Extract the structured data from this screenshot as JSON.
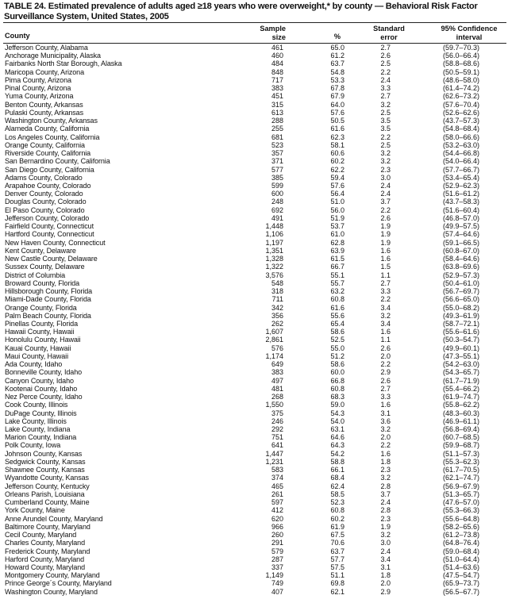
{
  "title": "TABLE 24. Estimated prevalence of adults aged ≥18 years who were overweight,* by county — Behavioral Risk Factor Surveillance System, United States, 2005",
  "headers": {
    "county": "County",
    "sample_size_line1": "Sample",
    "sample_size_line2": "size",
    "percent": "%",
    "se_line1": "Standard",
    "se_line2": "error",
    "ci_line1": "95% Confidence",
    "ci_line2": "interval"
  },
  "rows": [
    [
      "Jefferson County, Alabama",
      "461",
      "65.0",
      "2.7",
      "(59.7–70.3)"
    ],
    [
      "Anchorage Municipality, Alaska",
      "460",
      "61.2",
      "2.6",
      "(56.0–66.4)"
    ],
    [
      "Fairbanks North Star Borough, Alaska",
      "484",
      "63.7",
      "2.5",
      "(58.8–68.6)"
    ],
    [
      "Maricopa County, Arizona",
      "848",
      "54.8",
      "2.2",
      "(50.5–59.1)"
    ],
    [
      "Pima County, Arizona",
      "717",
      "53.3",
      "2.4",
      "(48.6–58.0)"
    ],
    [
      "Pinal County, Arizona",
      "383",
      "67.8",
      "3.3",
      "(61.4–74.2)"
    ],
    [
      "Yuma County, Arizona",
      "451",
      "67.9",
      "2.7",
      "(62.6–73.2)"
    ],
    [
      "Benton County, Arkansas",
      "315",
      "64.0",
      "3.2",
      "(57.6–70.4)"
    ],
    [
      "Pulaski County, Arkansas",
      "613",
      "57.6",
      "2.5",
      "(52.6–62.6)"
    ],
    [
      "Washington County, Arkansas",
      "288",
      "50.5",
      "3.5",
      "(43.7–57.3)"
    ],
    [
      "Alameda County, California",
      "255",
      "61.6",
      "3.5",
      "(54.8–68.4)"
    ],
    [
      "Los Angeles County, California",
      "681",
      "62.3",
      "2.2",
      "(58.0–66.6)"
    ],
    [
      "Orange County, California",
      "523",
      "58.1",
      "2.5",
      "(53.2–63.0)"
    ],
    [
      "Riverside County, California",
      "357",
      "60.6",
      "3.2",
      "(54.4–66.8)"
    ],
    [
      "San Bernardino County, California",
      "371",
      "60.2",
      "3.2",
      "(54.0–66.4)"
    ],
    [
      "San Diego County, California",
      "577",
      "62.2",
      "2.3",
      "(57.7–66.7)"
    ],
    [
      "Adams County, Colorado",
      "385",
      "59.4",
      "3.0",
      "(53.4–65.4)"
    ],
    [
      "Arapahoe County, Colorado",
      "599",
      "57.6",
      "2.4",
      "(52.9–62.3)"
    ],
    [
      "Denver County, Colorado",
      "600",
      "56.4",
      "2.4",
      "(51.6–61.2)"
    ],
    [
      "Douglas County, Colorado",
      "248",
      "51.0",
      "3.7",
      "(43.7–58.3)"
    ],
    [
      "El Paso County, Colorado",
      "692",
      "56.0",
      "2.2",
      "(51.6–60.4)"
    ],
    [
      "Jefferson County, Colorado",
      "491",
      "51.9",
      "2.6",
      "(46.8–57.0)"
    ],
    [
      "Fairfield County, Connecticut",
      "1,448",
      "53.7",
      "1.9",
      "(49.9–57.5)"
    ],
    [
      "Hartford County, Connecticut",
      "1,106",
      "61.0",
      "1.9",
      "(57.4–64.6)"
    ],
    [
      "New Haven County, Connecticut",
      "1,197",
      "62.8",
      "1.9",
      "(59.1–66.5)"
    ],
    [
      "Kent County, Delaware",
      "1,351",
      "63.9",
      "1.6",
      "(60.8–67.0)"
    ],
    [
      "New Castle County, Delaware",
      "1,328",
      "61.5",
      "1.6",
      "(58.4–64.6)"
    ],
    [
      "Sussex County, Delaware",
      "1,322",
      "66.7",
      "1.5",
      "(63.8–69.6)"
    ],
    [
      "District of Columbia",
      "3,576",
      "55.1",
      "1.1",
      "(52.9–57.3)"
    ],
    [
      "Broward County, Florida",
      "548",
      "55.7",
      "2.7",
      "(50.4–61.0)"
    ],
    [
      "Hillsborough County, Florida",
      "318",
      "63.2",
      "3.3",
      "(56.7–69.7)"
    ],
    [
      "Miami-Dade County, Florida",
      "711",
      "60.8",
      "2.2",
      "(56.6–65.0)"
    ],
    [
      "Orange County, Florida",
      "342",
      "61.6",
      "3.4",
      "(55.0–68.2)"
    ],
    [
      "Palm Beach County, Florida",
      "356",
      "55.6",
      "3.2",
      "(49.3–61.9)"
    ],
    [
      "Pinellas County, Florida",
      "262",
      "65.4",
      "3.4",
      "(58.7–72.1)"
    ],
    [
      "Hawaii County, Hawaii",
      "1,607",
      "58.6",
      "1.6",
      "(55.6–61.6)"
    ],
    [
      "Honolulu County, Hawaii",
      "2,861",
      "52.5",
      "1.1",
      "(50.3–54.7)"
    ],
    [
      "Kauai County, Hawaii",
      "576",
      "55.0",
      "2.6",
      "(49.9–60.1)"
    ],
    [
      "Maui County, Hawaii",
      "1,174",
      "51.2",
      "2.0",
      "(47.3–55.1)"
    ],
    [
      "Ada County, Idaho",
      "649",
      "58.6",
      "2.2",
      "(54.2–63.0)"
    ],
    [
      "Bonneville County, Idaho",
      "383",
      "60.0",
      "2.9",
      "(54.3–65.7)"
    ],
    [
      "Canyon County, Idaho",
      "497",
      "66.8",
      "2.6",
      "(61.7–71.9)"
    ],
    [
      "Kootenai County, Idaho",
      "481",
      "60.8",
      "2.7",
      "(55.4–66.2)"
    ],
    [
      "Nez Perce County, Idaho",
      "268",
      "68.3",
      "3.3",
      "(61.9–74.7)"
    ],
    [
      "Cook County, Illinois",
      "1,550",
      "59.0",
      "1.6",
      "(55.8–62.2)"
    ],
    [
      "DuPage County, Illinois",
      "375",
      "54.3",
      "3.1",
      "(48.3–60.3)"
    ],
    [
      "Lake County, Illinois",
      "246",
      "54.0",
      "3.6",
      "(46.9–61.1)"
    ],
    [
      "Lake County, Indiana",
      "292",
      "63.1",
      "3.2",
      "(56.8–69.4)"
    ],
    [
      "Marion County, Indiana",
      "751",
      "64.6",
      "2.0",
      "(60.7–68.5)"
    ],
    [
      "Polk County, Iowa",
      "641",
      "64.3",
      "2.2",
      "(59.9–68.7)"
    ],
    [
      "Johnson County, Kansas",
      "1,447",
      "54.2",
      "1.6",
      "(51.1–57.3)"
    ],
    [
      "Sedgwick County, Kansas",
      "1,231",
      "58.8",
      "1.8",
      "(55.3–62.3)"
    ],
    [
      "Shawnee County, Kansas",
      "583",
      "66.1",
      "2.3",
      "(61.7–70.5)"
    ],
    [
      "Wyandotte County, Kansas",
      "374",
      "68.4",
      "3.2",
      "(62.1–74.7)"
    ],
    [
      "Jefferson County, Kentucky",
      "465",
      "62.4",
      "2.8",
      "(56.9–67.9)"
    ],
    [
      "Orleans Parish, Louisiana",
      "261",
      "58.5",
      "3.7",
      "(51.3–65.7)"
    ],
    [
      "Cumberland County, Maine",
      "597",
      "52.3",
      "2.4",
      "(47.6–57.0)"
    ],
    [
      "York County, Maine",
      "412",
      "60.8",
      "2.8",
      "(55.3–66.3)"
    ],
    [
      "Anne Arundel County, Maryland",
      "620",
      "60.2",
      "2.3",
      "(55.6–64.8)"
    ],
    [
      "Baltimore County, Maryland",
      "966",
      "61.9",
      "1.9",
      "(58.2–65.6)"
    ],
    [
      "Cecil County, Maryland",
      "260",
      "67.5",
      "3.2",
      "(61.2–73.8)"
    ],
    [
      "Charles County, Maryland",
      "291",
      "70.6",
      "3.0",
      "(64.8–76.4)"
    ],
    [
      "Frederick County, Maryland",
      "579",
      "63.7",
      "2.4",
      "(59.0–68.4)"
    ],
    [
      "Harford County, Maryland",
      "287",
      "57.7",
      "3.4",
      "(51.0–64.4)"
    ],
    [
      "Howard County, Maryland",
      "337",
      "57.5",
      "3.1",
      "(51.4–63.6)"
    ],
    [
      "Montgomery County, Maryland",
      "1,149",
      "51.1",
      "1.8",
      "(47.5–54.7)"
    ],
    [
      "Prince George´s County, Maryland",
      "749",
      "69.8",
      "2.0",
      "(65.9–73.7)"
    ],
    [
      "Washington County, Maryland",
      "407",
      "62.1",
      "2.9",
      "(56.5–67.7)"
    ]
  ]
}
